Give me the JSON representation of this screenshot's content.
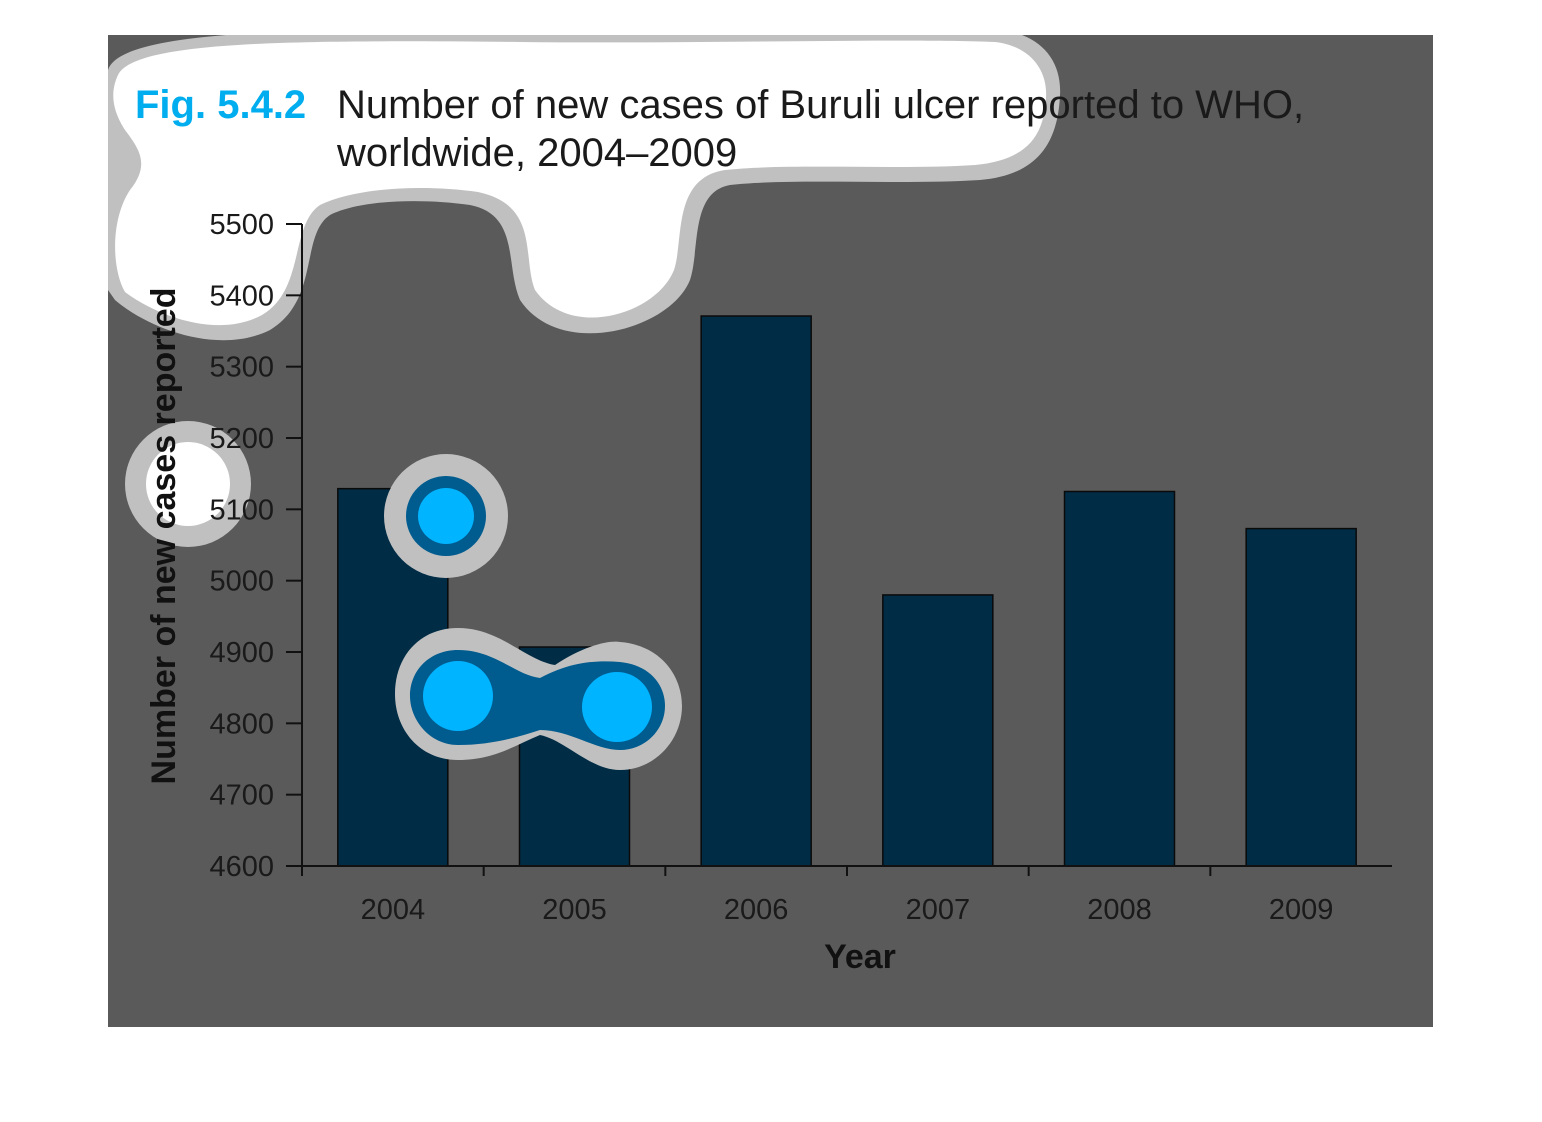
{
  "figure": {
    "label": "Fig. 5.4.2",
    "title_line1": "Number of new cases of Buruli ulcer reported to WHO,",
    "title_line2": "worldwide, 2004–2009"
  },
  "colors": {
    "panel_background": "#5a5a5a",
    "bar_fill": "#002c45",
    "highlight_ring": "#c0c0c0",
    "highlight_mid": "#005b8e",
    "highlight_core": "#00b4ff",
    "figure_label": "#00aeef"
  },
  "chart_data": {
    "type": "bar",
    "title": "Number of new cases of Buruli ulcer reported to WHO, worldwide, 2004–2009",
    "xlabel": "Year",
    "ylabel": "Number of new cases reported",
    "categories": [
      "2004",
      "2005",
      "2006",
      "2007",
      "2008",
      "2009"
    ],
    "values": [
      5129,
      4907,
      5371,
      4980,
      5125,
      5073
    ],
    "ylim": [
      4600,
      5500
    ],
    "yticks": [
      4600,
      4700,
      4800,
      4900,
      5000,
      5100,
      5200,
      5300,
      5400,
      5500
    ],
    "grid": false,
    "legend": "none"
  }
}
